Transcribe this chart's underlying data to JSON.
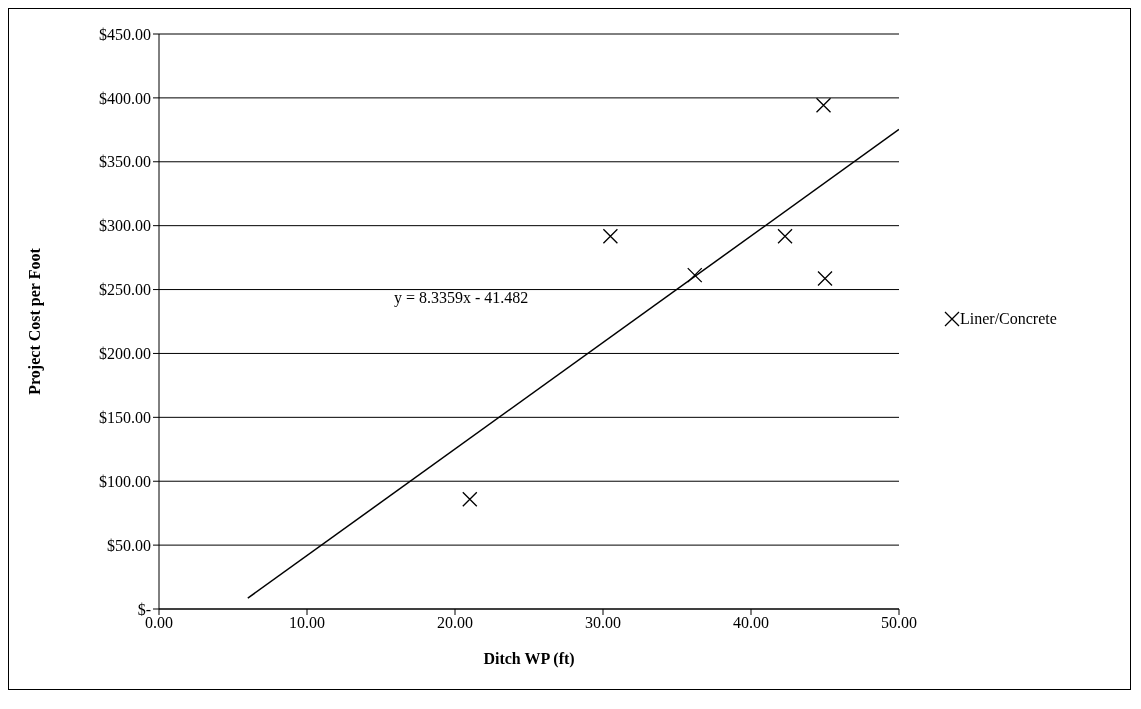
{
  "chart_data": {
    "type": "scatter",
    "xlabel": "Ditch WP (ft)",
    "ylabel": "Project Cost per Foot",
    "series": [
      {
        "name": "Liner/Concrete",
        "color": "#000000",
        "x": [
          21.0,
          30.5,
          36.2,
          42.3,
          44.9,
          45.0
        ],
        "values": [
          85.9,
          291.7,
          261.3,
          291.7,
          394.3,
          258.6
        ],
        "marker": "cross"
      },
      {
        "type": "line",
        "color": "#000000",
        "x": [
          6,
          50
        ],
        "values": [
          8.5,
          375.3
        ],
        "marker": "none",
        "line_style": "solid"
      }
    ],
    "annotations": [
      "y = 8.3359x - 41.482"
    ],
    "xlim": [
      0,
      50
    ],
    "xticks": [
      {
        "value": 0,
        "label": "0.00"
      },
      {
        "value": 10,
        "label": "10.00"
      },
      {
        "value": 20,
        "label": "20.00"
      },
      {
        "value": 30,
        "label": "30.00"
      },
      {
        "value": 40,
        "label": "40.00"
      },
      {
        "value": 50,
        "label": "50.00"
      }
    ],
    "ylim": [
      0,
      450
    ],
    "yticks": [
      {
        "value": 0,
        "label": "$-"
      },
      {
        "value": 50,
        "label": "$50.00"
      },
      {
        "value": 100,
        "label": "$100.00"
      },
      {
        "value": 150,
        "label": "$150.00"
      },
      {
        "value": 200,
        "label": "$200.00"
      },
      {
        "value": 250,
        "label": "$250.00"
      },
      {
        "value": 300,
        "label": "$300.00"
      },
      {
        "value": 350,
        "label": "$350.00"
      },
      {
        "value": 400,
        "label": "$400.00"
      },
      {
        "value": 450,
        "label": "$450.00"
      }
    ],
    "grid": "y",
    "legend": "right"
  }
}
